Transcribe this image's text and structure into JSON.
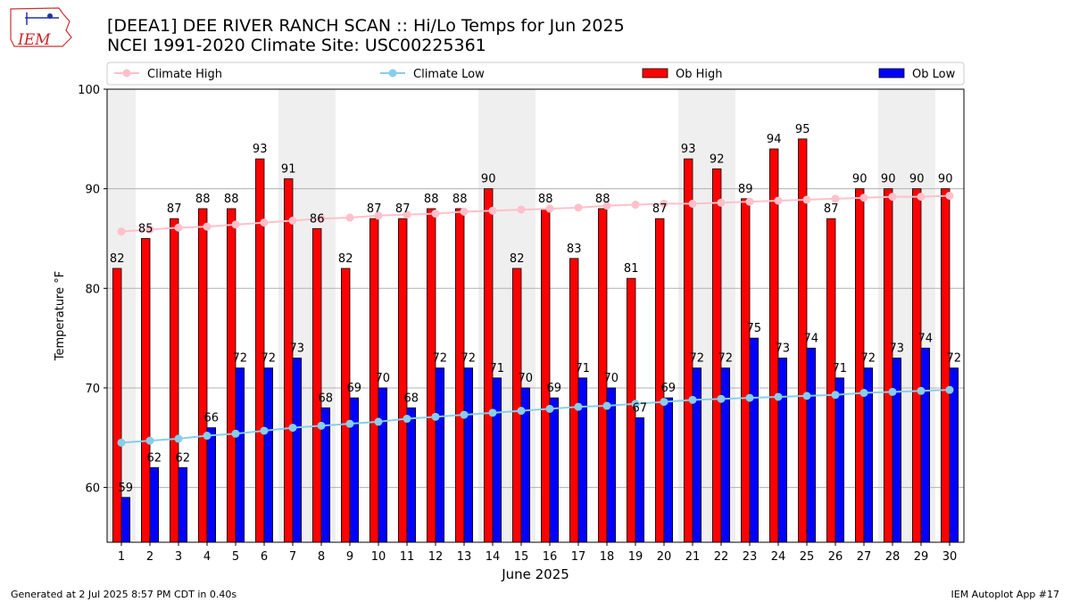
{
  "header": {
    "title": "[DEEA1] DEE RIVER RANCH SCAN :: Hi/Lo Temps for Jun 2025",
    "subtitle": "NCEI 1991-2020 Climate Site: USC00225361",
    "logo_text": "IEM"
  },
  "footer": {
    "generated": "Generated at 2 Jul 2025 8:57 PM CDT in 0.40s",
    "app": "IEM Autoplot App #17"
  },
  "colors": {
    "ob_high": "#ff0000",
    "ob_low": "#0000ff",
    "climate_high": "#ffc0cb",
    "climate_low": "#87ceeb",
    "weekend_band": "#efefef",
    "grid": "#b0b0b0"
  },
  "chart_data": {
    "type": "bar",
    "xlabel": "June 2025",
    "ylabel": "Temperature °F",
    "ylim": [
      54.5,
      100
    ],
    "yticks": [
      60,
      70,
      80,
      90,
      100
    ],
    "grid": "horizontal",
    "legend_position": "top",
    "weekend_days": [
      1,
      7,
      8,
      14,
      15,
      21,
      22,
      28,
      29
    ],
    "categories": [
      "1",
      "2",
      "3",
      "4",
      "5",
      "6",
      "7",
      "8",
      "9",
      "10",
      "11",
      "12",
      "13",
      "14",
      "15",
      "16",
      "17",
      "18",
      "19",
      "20",
      "21",
      "22",
      "23",
      "24",
      "25",
      "26",
      "27",
      "28",
      "29",
      "30"
    ],
    "series": [
      {
        "name": "Climate High",
        "kind": "line",
        "values": [
          85.7,
          85.9,
          86.1,
          86.2,
          86.4,
          86.6,
          86.8,
          87.0,
          87.1,
          87.3,
          87.4,
          87.5,
          87.7,
          87.8,
          87.9,
          88.0,
          88.1,
          88.3,
          88.4,
          88.5,
          88.5,
          88.6,
          88.7,
          88.8,
          88.9,
          89.0,
          89.1,
          89.2,
          89.2,
          89.3
        ]
      },
      {
        "name": "Climate Low",
        "kind": "line",
        "values": [
          64.5,
          64.7,
          64.9,
          65.2,
          65.4,
          65.7,
          66.0,
          66.2,
          66.4,
          66.6,
          66.9,
          67.1,
          67.3,
          67.5,
          67.7,
          67.9,
          68.1,
          68.2,
          68.4,
          68.6,
          68.8,
          68.9,
          69.0,
          69.1,
          69.2,
          69.3,
          69.5,
          69.6,
          69.7,
          69.8
        ]
      },
      {
        "name": "Ob High",
        "kind": "bar",
        "values": [
          82,
          85,
          87,
          88,
          88,
          93,
          91,
          86,
          82,
          87,
          87,
          88,
          88,
          90,
          82,
          88,
          83,
          88,
          81,
          87,
          93,
          92,
          89,
          94,
          95,
          87,
          90,
          90,
          90,
          90
        ]
      },
      {
        "name": "Ob Low",
        "kind": "bar",
        "values": [
          59,
          62,
          62,
          66,
          72,
          72,
          73,
          68,
          69,
          70,
          68,
          72,
          72,
          71,
          70,
          69,
          71,
          70,
          67,
          69,
          72,
          72,
          75,
          73,
          74,
          71,
          72,
          73,
          74,
          72
        ]
      }
    ]
  }
}
